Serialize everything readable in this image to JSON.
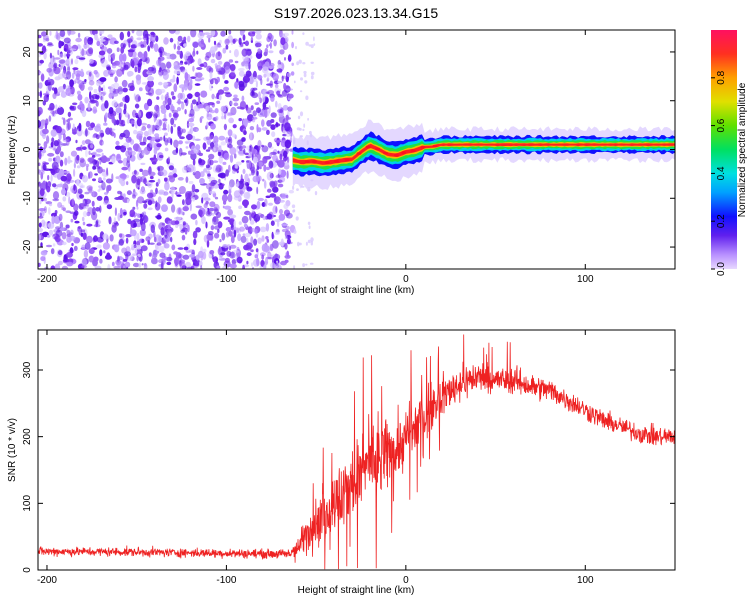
{
  "figure": {
    "title": "S197.2026.023.13.34.G15"
  },
  "chart_data": [
    {
      "type": "heatmap",
      "xlabel": "Height of straight line (km)",
      "ylabel": "Frequency (Hz)",
      "xlim": [
        -205,
        150
      ],
      "ylim": [
        -24.5,
        24.5
      ],
      "xticks": [
        -200,
        -100,
        0,
        100
      ],
      "yticks": [
        -20,
        -10,
        0,
        10,
        20
      ],
      "grid": false,
      "noise_region_x": [
        -205,
        -63
      ],
      "sparse_noise_x": [
        -63,
        -50
      ],
      "tone_path": {
        "x": [
          -63,
          -58,
          -52,
          -46,
          -40,
          -35,
          -30,
          -25,
          -20,
          -15,
          -10,
          -5,
          0,
          5,
          10,
          15,
          20,
          30,
          40,
          50,
          60,
          70,
          80,
          90,
          100,
          110,
          120,
          130,
          140,
          150
        ],
        "freq": [
          -2.2,
          -2.6,
          -2.4,
          -2.8,
          -2.5,
          -2.2,
          -2.0,
          -0.5,
          0.8,
          0.0,
          -1.0,
          -1.2,
          -0.5,
          -0.2,
          0.5,
          0.6,
          1.0,
          1.0,
          1.0,
          1.0,
          1.0,
          1.0,
          1.0,
          1.0,
          1.0,
          1.0,
          1.0,
          1.0,
          1.0,
          1.0
        ]
      },
      "colorbar": {
        "label": "Normalized spectral amplitude",
        "range": [
          0,
          1
        ],
        "ticks": [
          0.0,
          0.2,
          0.4,
          0.6,
          0.8
        ],
        "tick_labels": [
          "0.0",
          "0.2",
          "0.4",
          "0.6",
          "0.8"
        ],
        "colormap": "rainbow"
      }
    },
    {
      "type": "line",
      "xlabel": "Height of straight line (km)",
      "ylabel": "SNR (10 * v/v)",
      "xlim": [
        -205,
        150
      ],
      "ylim": [
        0,
        360
      ],
      "xticks": [
        -200,
        -100,
        0,
        100
      ],
      "yticks": [
        0,
        100,
        200,
        300
      ],
      "grid": false,
      "series": [
        {
          "color": "#ee2222",
          "envelope": {
            "x": [
              -205,
              -150,
              -100,
              -65,
              -60,
              -55,
              -50,
              -40,
              -30,
              -20,
              -10,
              0,
              10,
              20,
              30,
              40,
              50,
              60,
              70,
              80,
              90,
              100,
              110,
              120,
              130,
              140,
              150
            ],
            "center": [
              28,
              27,
              25,
              24,
              35,
              55,
              75,
              95,
              130,
              160,
              175,
              195,
              230,
              260,
              280,
              290,
              285,
              285,
              275,
              270,
              255,
              240,
              225,
              215,
              205,
              200,
              200
            ],
            "spread": [
              10,
              10,
              10,
              10,
              25,
              45,
              60,
              80,
              90,
              85,
              80,
              70,
              55,
              45,
              40,
              35,
              30,
              30,
              28,
              26,
              24,
              22,
              22,
              20,
              22,
              22,
              22
            ]
          }
        }
      ]
    }
  ]
}
